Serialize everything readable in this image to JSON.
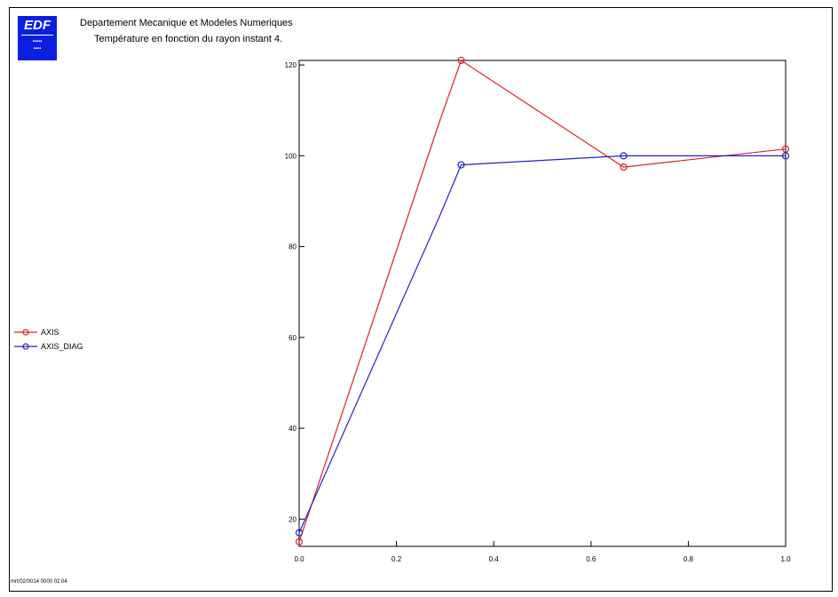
{
  "header": {
    "logo_main": "EDF",
    "title": "Departement Mecanique et Modeles Numeriques",
    "subtitle": "Température en fonction du rayon instant 4."
  },
  "footer": {
    "text": "mrt/02/0014 0000 02 04"
  },
  "chart_data": {
    "type": "line",
    "title": "Température en fonction du rayon instant 4.",
    "xlabel": "",
    "ylabel": "",
    "xlim": [
      0,
      1
    ],
    "ylim": [
      14,
      121
    ],
    "x_ticks": [
      0,
      0.2,
      0.4,
      0.6,
      0.8,
      1.0
    ],
    "x_tick_labels": [
      "0.0",
      "0.2",
      "0.4",
      "0.6",
      "0.8",
      "1.0"
    ],
    "y_ticks": [
      20,
      40,
      60,
      80,
      100,
      120
    ],
    "y_tick_labels": [
      "20",
      "40",
      "60",
      "80",
      "100",
      "120"
    ],
    "grid": false,
    "legend_position": "left",
    "series": [
      {
        "name": "AXIS",
        "color": "#dd2222",
        "x": [
          0.0,
          0.29,
          0.333,
          0.667,
          1.0
        ],
        "y": [
          15,
          108,
          121,
          97.5,
          101.5
        ],
        "markers": [
          true,
          false,
          true,
          true,
          true
        ]
      },
      {
        "name": "AXIS_DIAG",
        "color": "#2222cc",
        "x": [
          0.0,
          0.29,
          0.333,
          0.667,
          1.0
        ],
        "y": [
          17,
          87,
          98,
          100,
          100
        ],
        "markers": [
          true,
          false,
          true,
          true,
          true
        ]
      }
    ]
  }
}
